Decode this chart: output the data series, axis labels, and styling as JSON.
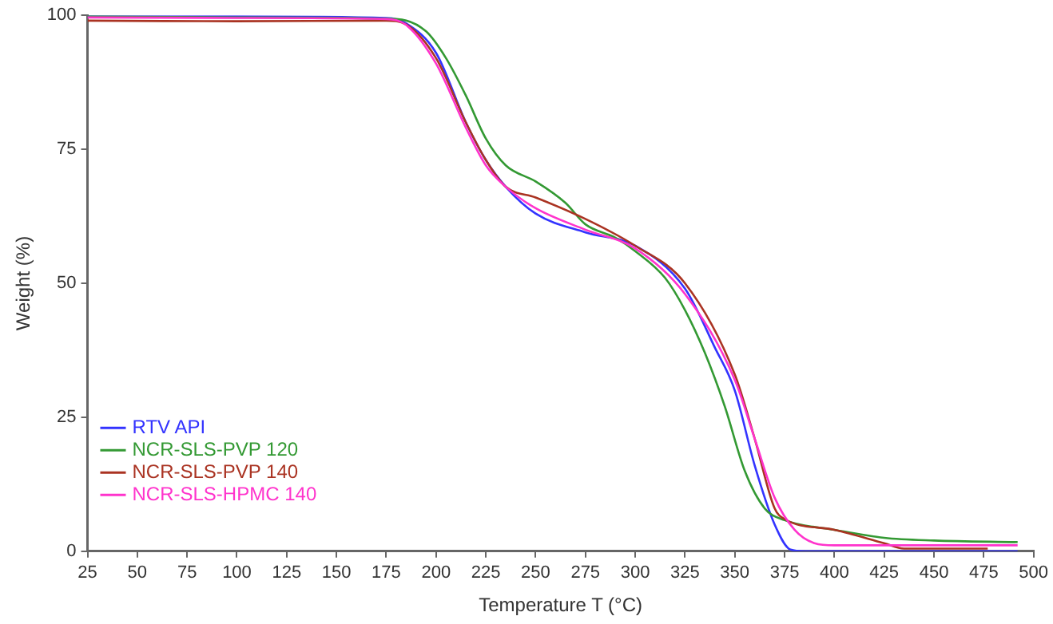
{
  "chart_data": {
    "type": "line",
    "xlabel": "Temperature T (°C)",
    "ylabel": "Weight (%)",
    "xlim": [
      25,
      500
    ],
    "xticks": [
      25,
      50,
      75,
      100,
      125,
      150,
      175,
      200,
      225,
      250,
      275,
      300,
      325,
      350,
      375,
      400,
      425,
      450,
      475,
      500
    ],
    "ylim": [
      0,
      100
    ],
    "yticks": [
      0,
      25,
      50,
      75,
      100
    ],
    "grid": false,
    "legend": "bottom left",
    "marker": "none",
    "line_style": "solid",
    "series": [
      {
        "name": "RTV API",
        "color": "#3333ff",
        "x": [
          25,
          100,
          175,
          185,
          200,
          215,
          225,
          235,
          250,
          275,
          300,
          325,
          340,
          350,
          360,
          370,
          378,
          385,
          492
        ],
        "values": [
          99.8,
          99.8,
          99.5,
          98.5,
          93,
          80,
          73,
          68,
          63,
          59.5,
          57,
          49,
          38,
          30,
          16,
          5,
          0.3,
          0,
          0
        ]
      },
      {
        "name": "NCR-SLS-PVP 120",
        "color": "#339933",
        "x": [
          25,
          100,
          180,
          195,
          205,
          215,
          225,
          235,
          250,
          265,
          275,
          290,
          300,
          315,
          325,
          335,
          345,
          355,
          365,
          375,
          400,
          425,
          450,
          492
        ],
        "values": [
          99.8,
          99.6,
          99.3,
          97,
          92,
          85,
          77,
          72,
          69,
          65,
          61,
          58.5,
          56,
          51,
          45,
          37,
          27,
          15,
          8,
          5.8,
          4,
          2.5,
          2,
          1.7
        ]
      },
      {
        "name": "NCR-SLS-PVP 140",
        "color": "#aa3322",
        "x": [
          25,
          100,
          175,
          185,
          200,
          215,
          225,
          235,
          250,
          275,
          300,
          325,
          350,
          360,
          370,
          375,
          400,
          425,
          435,
          477
        ],
        "values": [
          99.0,
          98.9,
          99.0,
          98.3,
          92,
          80,
          73,
          68,
          66,
          62,
          57,
          50,
          33,
          21,
          8,
          6,
          4,
          1.5,
          0.5,
          0.5
        ]
      },
      {
        "name": "NCR-SLS-HPMC 140",
        "color": "#ff33cc",
        "x": [
          25,
          100,
          175,
          185,
          200,
          215,
          225,
          235,
          250,
          275,
          300,
          325,
          350,
          360,
          370,
          380,
          390,
          400,
          492
        ],
        "values": [
          99.6,
          99.5,
          99.3,
          98.2,
          91,
          79,
          72,
          68,
          64,
          60,
          56.5,
          48,
          32,
          21,
          10,
          4,
          1.5,
          1.1,
          1.1
        ]
      }
    ]
  }
}
